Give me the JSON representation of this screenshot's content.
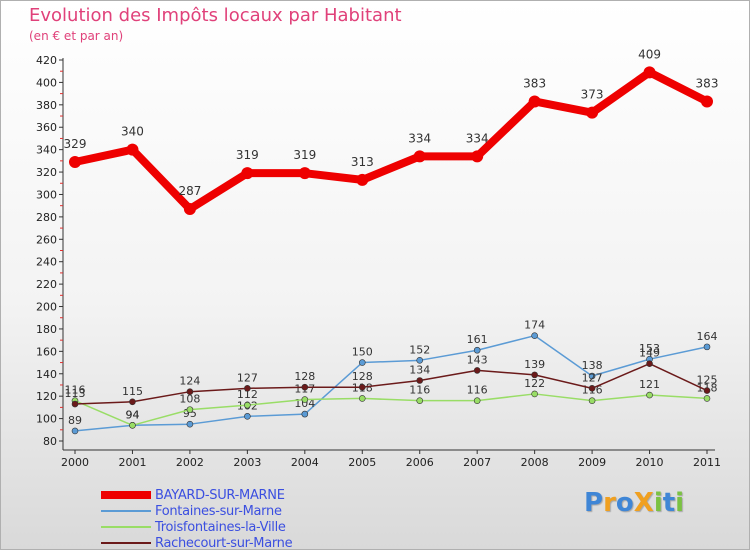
{
  "title": "Evolution des Impôts locaux par Habitant",
  "subtitle": "(en € et par an)",
  "logo": "ProXiti",
  "chart_data": {
    "type": "line",
    "title": "Evolution des Impôts locaux par Habitant",
    "subtitle": "(en € et par an)",
    "xlabel": "",
    "ylabel": "",
    "x": [
      "2000",
      "2001",
      "2002",
      "2003",
      "2004",
      "2005",
      "2006",
      "2007",
      "2008",
      "2009",
      "2010",
      "2011"
    ],
    "ylim": [
      80,
      420
    ],
    "yticks": [
      "80",
      "100",
      "120",
      "140",
      "160",
      "180",
      "200",
      "220",
      "240",
      "260",
      "280",
      "300",
      "320",
      "340",
      "360",
      "380",
      "400",
      "420"
    ],
    "grid": false,
    "legend_position": "bottom-left",
    "series": [
      {
        "name": "BAYARD-SUR-MARNE",
        "color": "#ee0000",
        "values": [
          329,
          340,
          287,
          319,
          319,
          313,
          334,
          334,
          383,
          373,
          409,
          383
        ],
        "labels": [
          "329",
          "340",
          "287",
          "319",
          "319",
          "313",
          "334",
          "334",
          "383",
          "373",
          "409",
          "383"
        ]
      },
      {
        "name": "Fontaines-sur-Marne",
        "color": "#5b9bd5",
        "values": [
          89,
          94,
          95,
          102,
          104,
          150,
          152,
          161,
          174,
          138,
          153,
          164
        ],
        "labels": [
          "89",
          "94",
          "95",
          "102",
          "104",
          "150",
          "152",
          "161",
          "174",
          "138",
          "153",
          "164"
        ]
      },
      {
        "name": "Troisfontaines-la-Ville",
        "color": "#99dd66",
        "values": [
          116,
          94,
          108,
          112,
          117,
          118,
          116,
          116,
          122,
          116,
          121,
          118
        ],
        "labels": [
          "116",
          "94",
          "108",
          "112",
          "117",
          "118",
          "116",
          "116",
          "122",
          "116",
          "121",
          "118"
        ]
      },
      {
        "name": "Rachecourt-sur-Marne",
        "color": "#6b1a1a",
        "values": [
          113,
          115,
          124,
          127,
          128,
          128,
          134,
          143,
          139,
          127,
          149,
          125
        ],
        "labels": [
          "113",
          "115",
          "124",
          "127",
          "128",
          "128",
          "134",
          "143",
          "139",
          "127",
          "149",
          "125"
        ]
      }
    ]
  }
}
